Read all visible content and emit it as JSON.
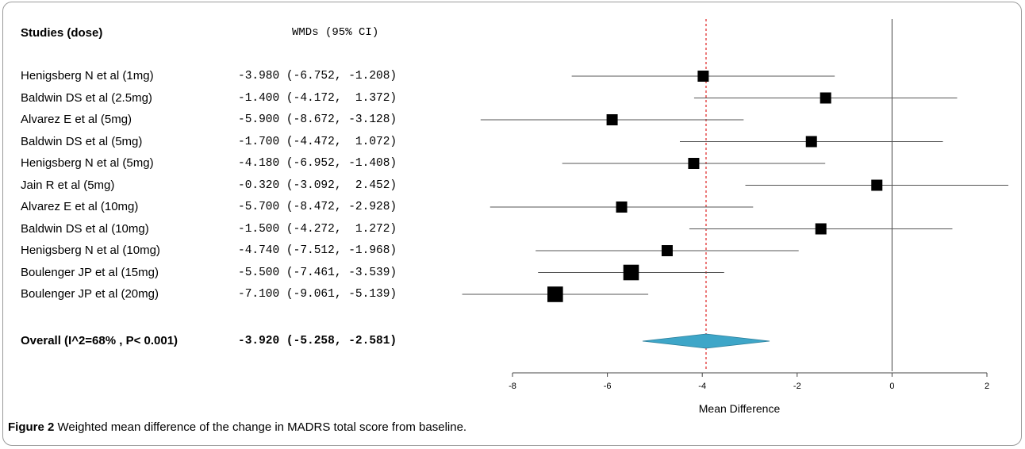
{
  "header": {
    "studies_label": "Studies (dose)",
    "stat_label": "WMDs (95% CI)"
  },
  "chart_data": {
    "type": "forest",
    "xlabel": "Mean Difference",
    "xlim": [
      -8,
      2
    ],
    "xticks": [
      -8,
      -6,
      -4,
      -2,
      0,
      2
    ],
    "reference_lines": {
      "null_effect": 0,
      "pooled_estimate": -3.92
    },
    "studies": [
      {
        "label": "Henigsberg N et al (1mg)",
        "text": "-3.980 (-6.752, -1.208)",
        "mean": -3.98,
        "lower": -6.752,
        "upper": -1.208,
        "weight": 1
      },
      {
        "label": "Baldwin DS et al (2.5mg)",
        "text": "-1.400 (-4.172,  1.372)",
        "mean": -1.4,
        "lower": -4.172,
        "upper": 1.372,
        "weight": 1
      },
      {
        "label": "Alvarez E et al (5mg)",
        "text": "-5.900 (-8.672, -3.128)",
        "mean": -5.9,
        "lower": -8.672,
        "upper": -3.128,
        "weight": 1
      },
      {
        "label": "Baldwin DS et al (5mg)",
        "text": "-1.700 (-4.472,  1.072)",
        "mean": -1.7,
        "lower": -4.472,
        "upper": 1.072,
        "weight": 1
      },
      {
        "label": "Henigsberg N et al (5mg)",
        "text": "-4.180 (-6.952, -1.408)",
        "mean": -4.18,
        "lower": -6.952,
        "upper": -1.408,
        "weight": 1
      },
      {
        "label": "Jain R et al (5mg)",
        "text": "-0.320 (-3.092,  2.452)",
        "mean": -0.32,
        "lower": -3.092,
        "upper": 2.452,
        "weight": 1
      },
      {
        "label": "Alvarez E et al (10mg)",
        "text": "-5.700 (-8.472, -2.928)",
        "mean": -5.7,
        "lower": -8.472,
        "upper": -2.928,
        "weight": 1
      },
      {
        "label": "Baldwin DS et al (10mg)",
        "text": "-1.500 (-4.272,  1.272)",
        "mean": -1.5,
        "lower": -4.272,
        "upper": 1.272,
        "weight": 1
      },
      {
        "label": "Henigsberg N et al (10mg)",
        "text": "-4.740 (-7.512, -1.968)",
        "mean": -4.74,
        "lower": -7.512,
        "upper": -1.968,
        "weight": 1
      },
      {
        "label": "Boulenger JP et al (15mg)",
        "text": "-5.500 (-7.461, -3.539)",
        "mean": -5.5,
        "lower": -7.461,
        "upper": -3.539,
        "weight": 1.4
      },
      {
        "label": "Boulenger JP et al (20mg)",
        "text": "-7.100 (-9.061, -5.139)",
        "mean": -7.1,
        "lower": -9.061,
        "upper": -5.139,
        "weight": 1.4
      }
    ],
    "overall": {
      "label": "Overall (I^2=68% , P< 0.001)",
      "text": "-3.920 (-5.258, -2.581)",
      "mean": -3.92,
      "lower": -5.258,
      "upper": -2.581
    },
    "colors": {
      "marker": "#000000",
      "ci_line": "#555555",
      "diamond": "#3ea6c8",
      "pooled_line": "#e03030"
    }
  },
  "caption": {
    "figure_label": "Figure 2",
    "text": " Weighted mean difference of the change in MADRS total score from baseline."
  }
}
